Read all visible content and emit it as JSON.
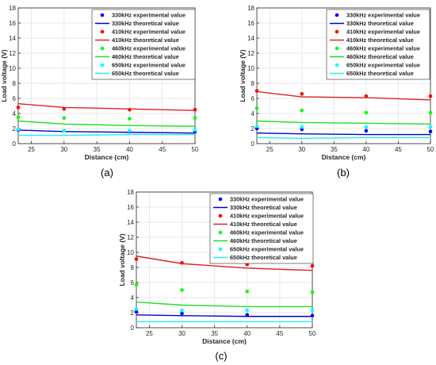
{
  "colors": {
    "330kHz": "#0000ff",
    "410kHz": "#ff0000",
    "460kHz": "#00ff00",
    "650kHz": "#00ffff",
    "theory_330kHz": "#0000cc",
    "theory_410kHz": "#dd2222",
    "theory_460kHz": "#22dd22",
    "theory_650kHz": "#22eeee"
  },
  "legend_labels": [
    "330kHz experimental value",
    "330kHz theoretical value",
    "410kHz experimental value",
    "410kHz theoretical value",
    "460kHz experimental value",
    "460kHz theoretical value",
    "650kHz experimental value",
    "650kHz theoretical value"
  ],
  "chart_data": [
    {
      "type": "scatter",
      "panel_label": "(a)",
      "xlabel": "Distance (cm)",
      "ylabel": "Load voltage (V)",
      "xlim": [
        23,
        50
      ],
      "ylim": [
        0,
        18
      ],
      "xticks": [
        25,
        30,
        35,
        40,
        45,
        50
      ],
      "yticks": [
        0,
        2,
        4,
        6,
        8,
        10,
        12,
        14,
        16,
        18
      ],
      "grid": true,
      "legend": "top-right",
      "x": [
        23,
        30,
        40,
        50
      ],
      "series": [
        {
          "name": "330kHz experimental value",
          "kind": "points",
          "color_key": "330kHz",
          "values": [
            1.8,
            1.7,
            1.6,
            1.6
          ]
        },
        {
          "name": "330kHz theoretical value",
          "kind": "line",
          "color_key": "theory_330kHz",
          "values": [
            1.8,
            1.6,
            1.5,
            1.4
          ]
        },
        {
          "name": "410kHz experimental value",
          "kind": "points",
          "color_key": "410kHz",
          "values": [
            4.8,
            4.6,
            4.5,
            4.5
          ]
        },
        {
          "name": "410kHz theoretical value",
          "kind": "line",
          "color_key": "theory_410kHz",
          "values": [
            5.3,
            4.8,
            4.6,
            4.4
          ]
        },
        {
          "name": "460kHz experimental value",
          "kind": "points",
          "color_key": "460kHz",
          "values": [
            3.5,
            3.4,
            3.3,
            3.4
          ]
        },
        {
          "name": "460kHz theoretical value",
          "kind": "line",
          "color_key": "theory_460kHz",
          "values": [
            3.0,
            2.6,
            2.4,
            2.3
          ]
        },
        {
          "name": "650kHz experimental value",
          "kind": "points",
          "color_key": "650kHz",
          "values": [
            1.9,
            1.7,
            1.7,
            1.8
          ]
        },
        {
          "name": "650kHz theoretical value",
          "kind": "line",
          "color_key": "theory_650kHz",
          "values": [
            1.1,
            1.1,
            1.2,
            1.2
          ]
        }
      ]
    },
    {
      "type": "scatter",
      "panel_label": "(b)",
      "xlabel": "Distance (cm)",
      "ylabel": "Load voltage (V)",
      "xlim": [
        23,
        50
      ],
      "ylim": [
        0,
        18
      ],
      "xticks": [
        25,
        30,
        35,
        40,
        45,
        50
      ],
      "yticks": [
        0,
        2,
        4,
        6,
        8,
        10,
        12,
        14,
        16,
        18
      ],
      "grid": true,
      "legend": "top-right",
      "x": [
        23,
        30,
        40,
        50
      ],
      "series": [
        {
          "name": "330kHz experimental value",
          "kind": "points",
          "color_key": "330kHz",
          "values": [
            2.0,
            1.9,
            1.7,
            1.6
          ]
        },
        {
          "name": "330kHz theoretical value",
          "kind": "line",
          "color_key": "theory_330kHz",
          "values": [
            1.4,
            1.3,
            1.2,
            1.2
          ]
        },
        {
          "name": "410kHz experimental value",
          "kind": "points",
          "color_key": "410kHz",
          "values": [
            7.0,
            6.6,
            6.3,
            6.3
          ]
        },
        {
          "name": "410kHz theoretical value",
          "kind": "line",
          "color_key": "theory_410kHz",
          "values": [
            6.9,
            6.2,
            6.1,
            5.8
          ]
        },
        {
          "name": "460kHz experimental value",
          "kind": "points",
          "color_key": "460kHz",
          "values": [
            4.7,
            4.4,
            4.1,
            4.1
          ]
        },
        {
          "name": "460kHz theoretical value",
          "kind": "line",
          "color_key": "theory_460kHz",
          "values": [
            3.0,
            2.8,
            2.7,
            2.6
          ]
        },
        {
          "name": "650kHz experimental value",
          "kind": "points",
          "color_key": "650kHz",
          "values": [
            2.3,
            2.2,
            2.2,
            2.2
          ]
        },
        {
          "name": "650kHz theoretical value",
          "kind": "line",
          "color_key": "theory_650kHz",
          "values": [
            0.8,
            0.7,
            0.8,
            0.8
          ]
        }
      ]
    },
    {
      "type": "scatter",
      "panel_label": "(c)",
      "xlabel": "Distance (cm)",
      "ylabel": "Load voltage (V)",
      "xlim": [
        23,
        50
      ],
      "ylim": [
        0,
        18
      ],
      "xticks": [
        25,
        30,
        35,
        40,
        45,
        50
      ],
      "yticks": [
        0,
        2,
        4,
        6,
        8,
        10,
        12,
        14,
        16,
        18
      ],
      "grid": true,
      "legend": "top-right",
      "x": [
        23,
        30,
        40,
        50
      ],
      "series": [
        {
          "name": "330kHz experimental value",
          "kind": "points",
          "color_key": "330kHz",
          "values": [
            2.1,
            1.9,
            1.7,
            1.6
          ]
        },
        {
          "name": "330kHz theoretical value",
          "kind": "line",
          "color_key": "theory_330kHz",
          "values": [
            1.7,
            1.6,
            1.5,
            1.5
          ]
        },
        {
          "name": "410kHz experimental value",
          "kind": "points",
          "color_key": "410kHz",
          "values": [
            9.1,
            8.6,
            8.4,
            8.2
          ]
        },
        {
          "name": "410kHz theoretical value",
          "kind": "line",
          "color_key": "theory_410kHz",
          "values": [
            9.5,
            8.5,
            7.9,
            7.6
          ]
        },
        {
          "name": "460kHz experimental value",
          "kind": "points",
          "color_key": "460kHz",
          "values": [
            5.7,
            5.0,
            4.8,
            4.7
          ]
        },
        {
          "name": "460kHz theoretical value",
          "kind": "line",
          "color_key": "theory_460kHz",
          "values": [
            3.4,
            3.0,
            2.8,
            2.8
          ]
        },
        {
          "name": "650kHz experimental value",
          "kind": "points",
          "color_key": "650kHz",
          "values": [
            2.5,
            2.3,
            2.3,
            2.3
          ]
        },
        {
          "name": "650kHz theoretical value",
          "kind": "line",
          "color_key": "theory_650kHz",
          "values": [
            0.8,
            0.8,
            0.8,
            0.8
          ]
        }
      ]
    }
  ]
}
